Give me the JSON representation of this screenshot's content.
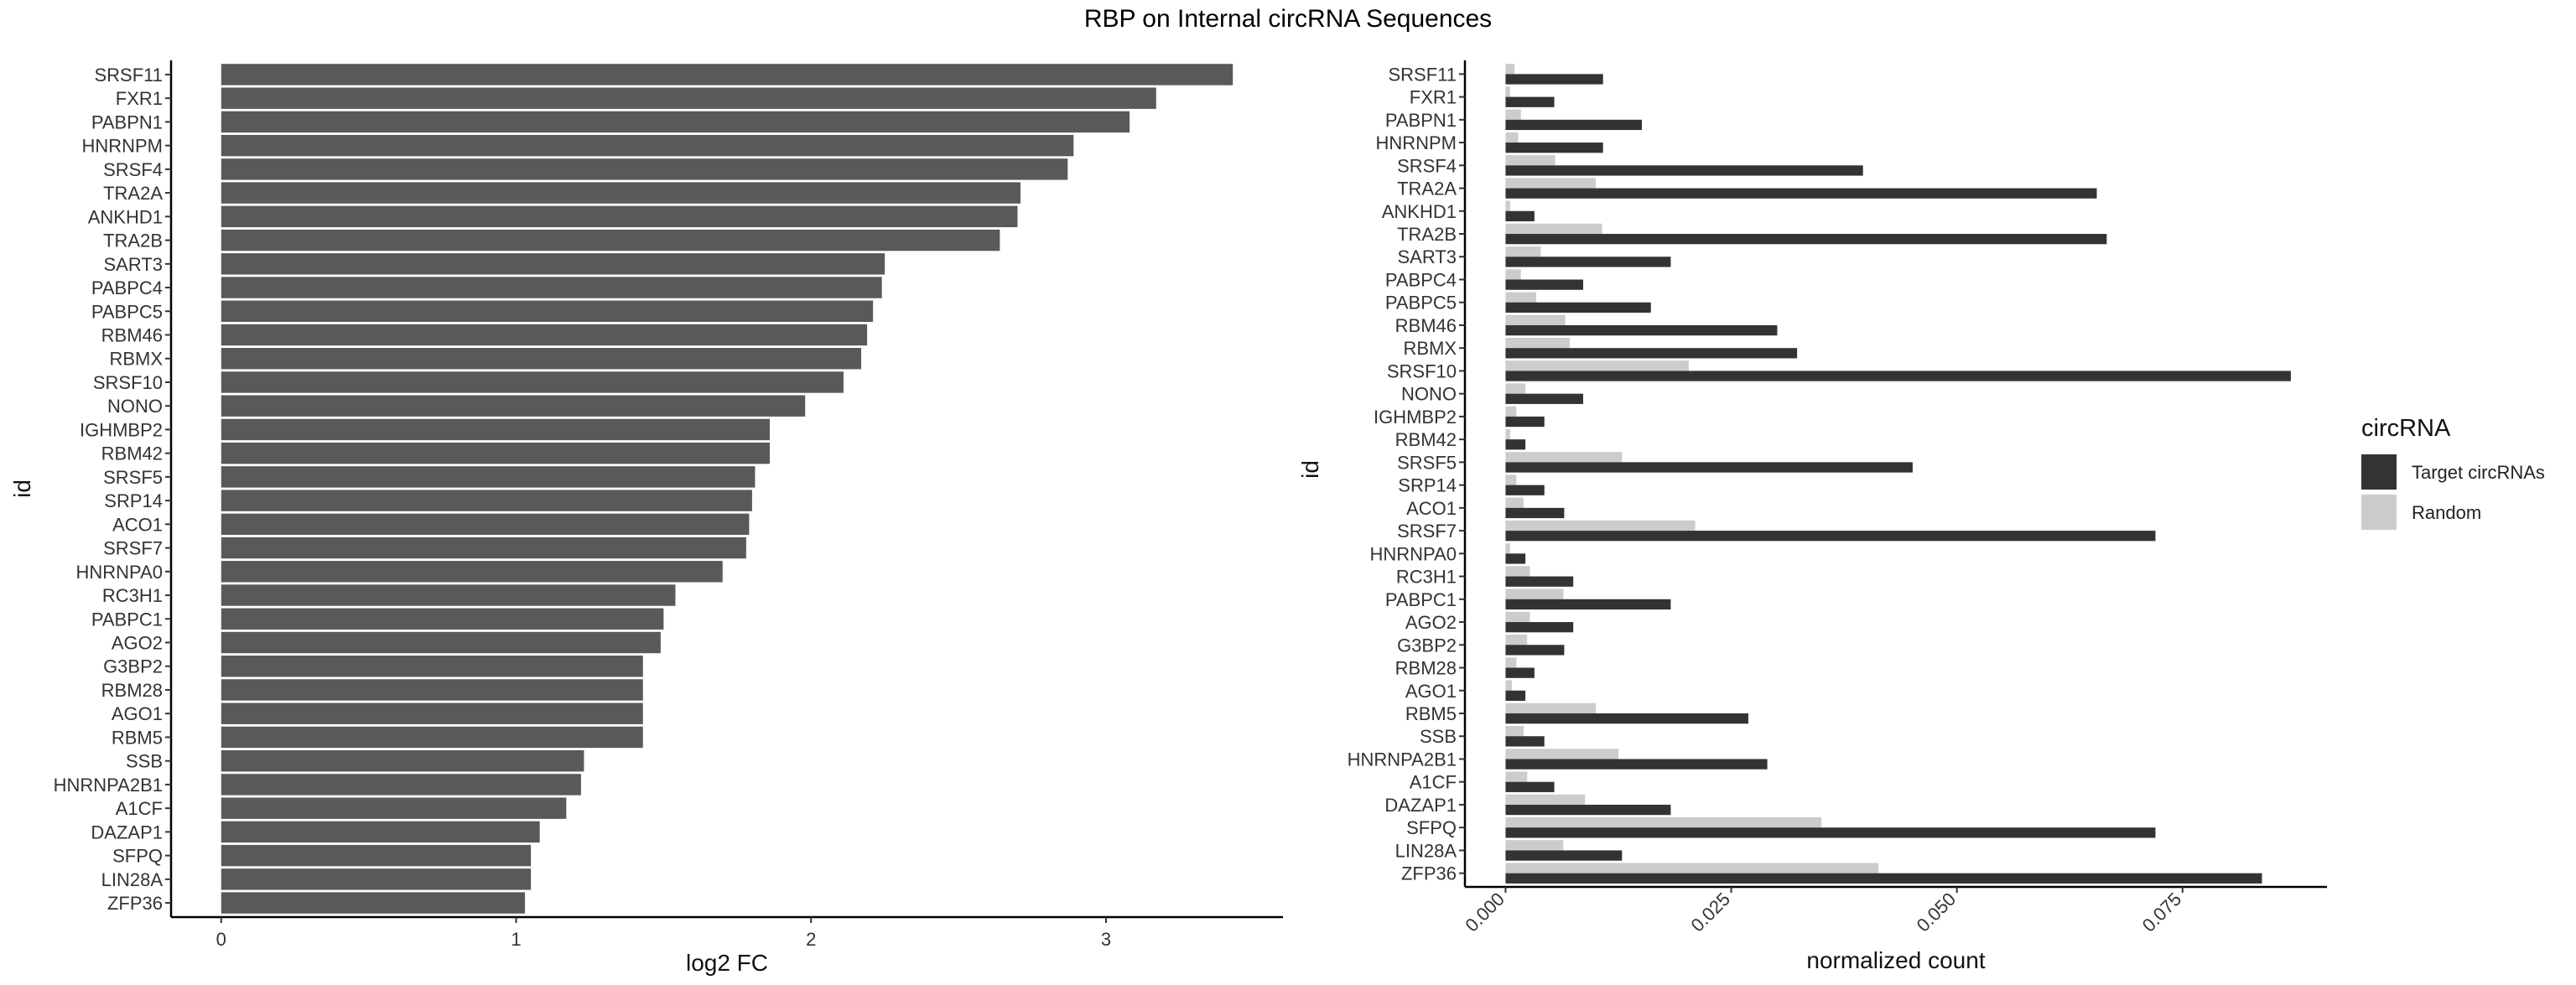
{
  "title": "RBP on Internal circRNA Sequences",
  "chart_data": [
    {
      "type": "bar",
      "orientation": "horizontal",
      "xlabel": "log2 FC",
      "ylabel": "id",
      "xlim": [
        -0.17,
        3.6
      ],
      "xticks": [
        0,
        1,
        2,
        3
      ],
      "xtick_labels": [
        "0",
        "1",
        "2",
        "3"
      ],
      "bar_color": "#595959",
      "categories": [
        "SRSF11",
        "FXR1",
        "PABPN1",
        "HNRNPM",
        "SRSF4",
        "TRA2A",
        "ANKHD1",
        "TRA2B",
        "SART3",
        "PABPC4",
        "PABPC5",
        "RBM46",
        "RBMX",
        "SRSF10",
        "NONO",
        "IGHMBP2",
        "RBM42",
        "SRSF5",
        "SRP14",
        "ACO1",
        "SRSF7",
        "HNRNPA0",
        "RC3H1",
        "PABPC1",
        "AGO2",
        "G3BP2",
        "RBM28",
        "AGO1",
        "RBM5",
        "SSB",
        "HNRNPA2B1",
        "A1CF",
        "DAZAP1",
        "SFPQ",
        "LIN28A",
        "ZFP36"
      ],
      "values": [
        3.43,
        3.17,
        3.08,
        2.89,
        2.87,
        2.71,
        2.7,
        2.64,
        2.25,
        2.24,
        2.21,
        2.19,
        2.17,
        2.11,
        1.98,
        1.86,
        1.86,
        1.81,
        1.8,
        1.79,
        1.78,
        1.7,
        1.54,
        1.5,
        1.49,
        1.43,
        1.43,
        1.43,
        1.43,
        1.23,
        1.22,
        1.17,
        1.08,
        1.05,
        1.05,
        1.03
      ]
    },
    {
      "type": "bar",
      "orientation": "horizontal",
      "grouped": true,
      "xlabel": "normalized count",
      "ylabel": "id",
      "xlim": [
        -0.0045,
        0.091
      ],
      "xticks": [
        0,
        0.025,
        0.05,
        0.075
      ],
      "xtick_labels": [
        "0.000",
        "0.025",
        "0.050",
        "0.075"
      ],
      "categories": [
        "SRSF11",
        "FXR1",
        "PABPN1",
        "HNRNPM",
        "SRSF4",
        "TRA2A",
        "ANKHD1",
        "TRA2B",
        "SART3",
        "PABPC4",
        "PABPC5",
        "RBM46",
        "RBMX",
        "SRSF10",
        "NONO",
        "IGHMBP2",
        "RBM42",
        "SRSF5",
        "SRP14",
        "ACO1",
        "SRSF7",
        "HNRNPA0",
        "RC3H1",
        "PABPC1",
        "AGO2",
        "G3BP2",
        "RBM28",
        "AGO1",
        "RBM5",
        "SSB",
        "HNRNPA2B1",
        "A1CF",
        "DAZAP1",
        "SFPQ",
        "LIN28A",
        "ZFP36"
      ],
      "legend": {
        "title": "circRNA",
        "position": "right"
      },
      "series": [
        {
          "name": "Random",
          "color": "#cccccc",
          "values": [
            0.001,
            0.0005,
            0.0017,
            0.0014,
            0.0055,
            0.01,
            0.0005,
            0.0107,
            0.0039,
            0.0017,
            0.0034,
            0.0066,
            0.0071,
            0.0203,
            0.0022,
            0.0012,
            0.0005,
            0.0129,
            0.0012,
            0.002,
            0.021,
            0.0005,
            0.0027,
            0.0064,
            0.0027,
            0.0024,
            0.0012,
            0.0007,
            0.01,
            0.002,
            0.0125,
            0.0024,
            0.0088,
            0.035,
            0.0064,
            0.0413
          ]
        },
        {
          "name": "Target circRNAs",
          "color": "#333333",
          "values": [
            0.0108,
            0.0054,
            0.0151,
            0.0108,
            0.0396,
            0.0655,
            0.0032,
            0.0666,
            0.0183,
            0.0086,
            0.0161,
            0.0301,
            0.0323,
            0.087,
            0.0086,
            0.0043,
            0.0022,
            0.0451,
            0.0043,
            0.0065,
            0.072,
            0.0022,
            0.0075,
            0.0183,
            0.0075,
            0.0065,
            0.0032,
            0.0022,
            0.0269,
            0.0043,
            0.029,
            0.0054,
            0.0183,
            0.072,
            0.0129,
            0.0838
          ]
        }
      ]
    }
  ]
}
